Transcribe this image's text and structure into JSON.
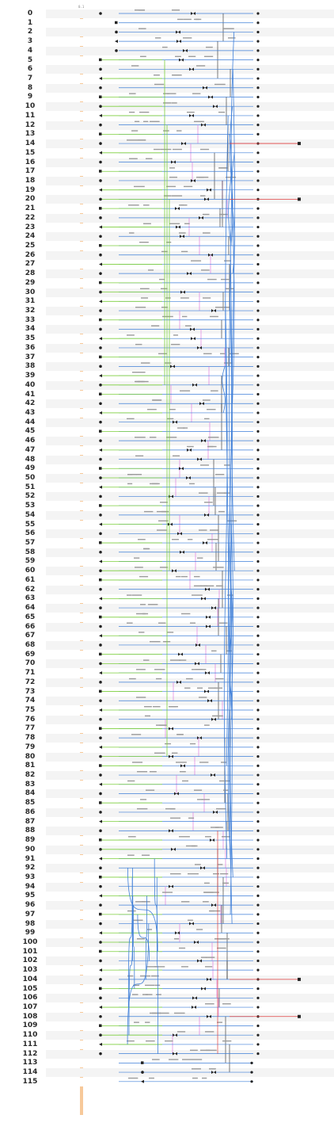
{
  "lanes": [
    "0",
    "1",
    "2",
    "3",
    "4",
    "5",
    "6",
    "7",
    "8",
    "9",
    "10",
    "11",
    "12",
    "13",
    "14",
    "15",
    "16",
    "17",
    "18",
    "19",
    "20",
    "21",
    "22",
    "23",
    "24",
    "25",
    "26",
    "27",
    "28",
    "29",
    "30",
    "31",
    "32",
    "33",
    "34",
    "35",
    "36",
    "37",
    "38",
    "39",
    "40",
    "41",
    "42",
    "43",
    "44",
    "45",
    "46",
    "47",
    "48",
    "49",
    "50",
    "51",
    "52",
    "53",
    "54",
    "55",
    "56",
    "57",
    "58",
    "59",
    "60",
    "61",
    "62",
    "63",
    "64",
    "65",
    "66",
    "67",
    "68",
    "69",
    "70",
    "71",
    "72",
    "73",
    "74",
    "75",
    "76",
    "77",
    "78",
    "79",
    "80",
    "81",
    "82",
    "83",
    "84",
    "85",
    "86",
    "87",
    "88",
    "89",
    "90",
    "91",
    "92",
    "93",
    "94",
    "95",
    "96",
    "97",
    "98",
    "99",
    "100",
    "101",
    "102",
    "103",
    "104",
    "105",
    "106",
    "107",
    "108",
    "109",
    "110",
    "111",
    "112",
    "113",
    "114",
    "115"
  ],
  "ruler_tag": "0.1",
  "colors": {
    "lane_bg_even": "#f4f4f4",
    "lane_bg_odd": "#ffffff",
    "bus_blue": "#3f7fd8",
    "link_green": "#7ccf3c",
    "link_magenta": "#e07ee0",
    "wire_dark": "#222222",
    "wire_red": "#e04040",
    "ruler": "#f7c99a"
  },
  "red_external_lanes": [
    14,
    20,
    104,
    108
  ]
}
